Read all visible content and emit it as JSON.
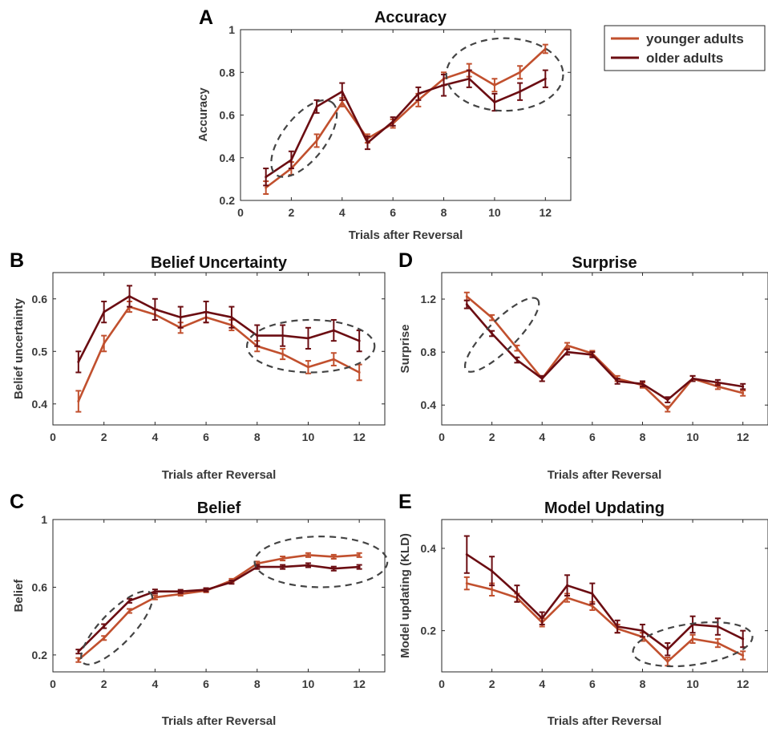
{
  "colors": {
    "younger": "#c1502e",
    "older": "#6b0d12",
    "ellipse": "#444444"
  },
  "legend": {
    "entries": [
      "younger adults",
      "older adults"
    ]
  },
  "chart_data": [
    {
      "id": "A",
      "type": "line",
      "panel_label": "A",
      "title": "Accuracy",
      "xlabel": "Trials after Reversal",
      "ylabel": "Accuracy",
      "xlim": [
        0,
        13
      ],
      "ylim": [
        0.2,
        1
      ],
      "xticks": [
        "0",
        "2",
        "4",
        "6",
        "8",
        "10",
        "12"
      ],
      "yticks": [
        "0.2",
        "0.4",
        "0.6",
        "0.8",
        "1"
      ],
      "x": [
        1,
        2,
        3,
        4,
        5,
        6,
        7,
        8,
        9,
        10,
        11,
        12
      ],
      "series": [
        {
          "name": "younger adults",
          "values": [
            0.26,
            0.35,
            0.48,
            0.66,
            0.49,
            0.56,
            0.67,
            0.77,
            0.81,
            0.74,
            0.8,
            0.91
          ],
          "err": [
            0.03,
            0.03,
            0.03,
            0.02,
            0.02,
            0.02,
            0.03,
            0.03,
            0.03,
            0.03,
            0.03,
            0.02
          ]
        },
        {
          "name": "older adults",
          "values": [
            0.31,
            0.39,
            0.64,
            0.71,
            0.47,
            0.57,
            0.7,
            0.74,
            0.77,
            0.66,
            0.71,
            0.77
          ],
          "err": [
            0.04,
            0.04,
            0.03,
            0.04,
            0.03,
            0.02,
            0.03,
            0.05,
            0.04,
            0.04,
            0.04,
            0.04
          ]
        }
      ],
      "ellipses": [
        {
          "cx": 2.5,
          "cy": 0.49,
          "rx": 1.8,
          "ry": 0.2,
          "rot": -52
        },
        {
          "cx": 10.4,
          "cy": 0.79,
          "rx": 2.3,
          "ry": 0.17,
          "rot": 0
        }
      ]
    },
    {
      "id": "B",
      "type": "line",
      "panel_label": "B",
      "title": "Belief Uncertainty",
      "xlabel": "Trials after Reversal",
      "ylabel": "Belief uncertainty",
      "xlim": [
        0,
        13
      ],
      "ylim": [
        0.36,
        0.65
      ],
      "xticks": [
        "0",
        "2",
        "4",
        "6",
        "8",
        "10",
        "12"
      ],
      "yticks": [
        "0.4",
        "0.5",
        "0.6"
      ],
      "x": [
        1,
        2,
        3,
        4,
        5,
        6,
        7,
        8,
        9,
        10,
        11,
        12
      ],
      "series": [
        {
          "name": "younger adults",
          "values": [
            0.405,
            0.515,
            0.585,
            0.57,
            0.545,
            0.565,
            0.55,
            0.51,
            0.495,
            0.47,
            0.485,
            0.46
          ],
          "err": [
            0.02,
            0.015,
            0.01,
            0.01,
            0.01,
            0.01,
            0.01,
            0.01,
            0.01,
            0.012,
            0.012,
            0.015
          ]
        },
        {
          "name": "older adults",
          "values": [
            0.48,
            0.575,
            0.605,
            0.58,
            0.565,
            0.575,
            0.565,
            0.53,
            0.53,
            0.525,
            0.54,
            0.52
          ],
          "err": [
            0.02,
            0.02,
            0.02,
            0.02,
            0.02,
            0.02,
            0.02,
            0.02,
            0.02,
            0.02,
            0.02,
            0.02
          ]
        }
      ],
      "ellipses": [
        {
          "cx": 10.1,
          "cy": 0.51,
          "rx": 2.5,
          "ry": 0.05,
          "rot": 0
        }
      ]
    },
    {
      "id": "C",
      "type": "line",
      "panel_label": "C",
      "title": "Belief",
      "xlabel": "Trials after Reversal",
      "ylabel": "Belief",
      "xlim": [
        0,
        13
      ],
      "ylim": [
        0.1,
        1
      ],
      "xticks": [
        "0",
        "2",
        "4",
        "6",
        "8",
        "10",
        "12"
      ],
      "yticks": [
        "0.2",
        "0.6",
        "1"
      ],
      "x": [
        1,
        2,
        3,
        4,
        5,
        6,
        7,
        8,
        9,
        10,
        11,
        12
      ],
      "series": [
        {
          "name": "younger adults",
          "values": [
            0.17,
            0.3,
            0.46,
            0.54,
            0.56,
            0.58,
            0.64,
            0.74,
            0.77,
            0.79,
            0.78,
            0.79
          ],
          "err": [
            0.012,
            0.012,
            0.012,
            0.012,
            0.01,
            0.01,
            0.01,
            0.012,
            0.012,
            0.012,
            0.012,
            0.012
          ]
        },
        {
          "name": "older adults",
          "values": [
            0.22,
            0.37,
            0.52,
            0.575,
            0.575,
            0.585,
            0.63,
            0.72,
            0.72,
            0.73,
            0.71,
            0.72
          ],
          "err": [
            0.012,
            0.012,
            0.012,
            0.012,
            0.01,
            0.01,
            0.01,
            0.012,
            0.012,
            0.012,
            0.012,
            0.012
          ]
        }
      ],
      "ellipses": [
        {
          "cx": 2.5,
          "cy": 0.36,
          "rx": 1.9,
          "ry": 0.19,
          "rot": -46
        },
        {
          "cx": 10.5,
          "cy": 0.75,
          "rx": 2.6,
          "ry": 0.15,
          "rot": 0
        }
      ]
    },
    {
      "id": "D",
      "type": "line",
      "panel_label": "D",
      "title": "Surprise",
      "xlabel": "Trials after Reversal",
      "ylabel": "Surprise",
      "xlim": [
        0,
        13
      ],
      "ylim": [
        0.25,
        1.4
      ],
      "xticks": [
        "0",
        "2",
        "4",
        "6",
        "8",
        "10",
        "12"
      ],
      "yticks": [
        "0.4",
        "0.8",
        "1.2"
      ],
      "x": [
        1,
        2,
        3,
        4,
        5,
        6,
        7,
        8,
        9,
        10,
        11,
        12
      ],
      "series": [
        {
          "name": "younger adults",
          "values": [
            1.22,
            1.06,
            0.83,
            0.6,
            0.85,
            0.79,
            0.6,
            0.55,
            0.37,
            0.6,
            0.54,
            0.49
          ],
          "err": [
            0.03,
            0.02,
            0.02,
            0.02,
            0.02,
            0.02,
            0.02,
            0.02,
            0.02,
            0.02,
            0.02,
            0.02
          ]
        },
        {
          "name": "older adults",
          "values": [
            1.16,
            0.94,
            0.74,
            0.6,
            0.8,
            0.78,
            0.58,
            0.56,
            0.44,
            0.6,
            0.57,
            0.54
          ],
          "err": [
            0.03,
            0.02,
            0.02,
            0.02,
            0.02,
            0.02,
            0.02,
            0.02,
            0.02,
            0.02,
            0.02,
            0.02
          ]
        }
      ],
      "ellipses": [
        {
          "cx": 2.4,
          "cy": 0.93,
          "rx": 2.0,
          "ry": 0.22,
          "rot": -45
        }
      ]
    },
    {
      "id": "E",
      "type": "line",
      "panel_label": "E",
      "title": "Model Updating",
      "xlabel": "Trials after Reversal",
      "ylabel": "Model updating (KLD)",
      "xlim": [
        0,
        13
      ],
      "ylim": [
        0.1,
        0.47
      ],
      "xticks": [
        "0",
        "2",
        "4",
        "6",
        "8",
        "10",
        "12"
      ],
      "yticks": [
        "0.2",
        "0.4"
      ],
      "x": [
        1,
        2,
        3,
        4,
        5,
        6,
        7,
        8,
        9,
        10,
        11,
        12
      ],
      "series": [
        {
          "name": "younger adults",
          "values": [
            0.315,
            0.3,
            0.28,
            0.22,
            0.28,
            0.26,
            0.205,
            0.185,
            0.125,
            0.18,
            0.17,
            0.14
          ],
          "err": [
            0.015,
            0.015,
            0.01,
            0.01,
            0.01,
            0.01,
            0.01,
            0.01,
            0.01,
            0.01,
            0.01,
            0.01
          ]
        },
        {
          "name": "older adults",
          "values": [
            0.385,
            0.345,
            0.29,
            0.23,
            0.31,
            0.29,
            0.21,
            0.2,
            0.155,
            0.215,
            0.21,
            0.18
          ],
          "err": [
            0.045,
            0.035,
            0.02,
            0.015,
            0.025,
            0.025,
            0.015,
            0.015,
            0.015,
            0.02,
            0.02,
            0.02
          ]
        }
      ],
      "ellipses": [
        {
          "cx": 10.0,
          "cy": 0.167,
          "rx": 2.4,
          "ry": 0.05,
          "rot": -8
        }
      ]
    }
  ]
}
